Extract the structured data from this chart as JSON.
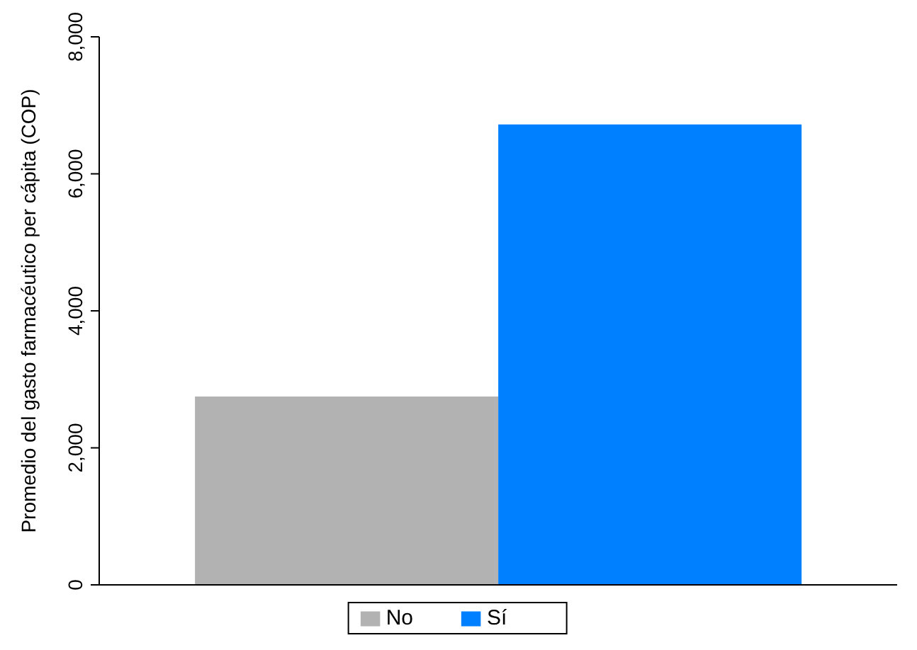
{
  "chart_data": {
    "type": "bar",
    "ylabel": "Promedio del gasto farmacéutico per cápita (COP)",
    "categories": [
      null
    ],
    "series": [
      {
        "name": "No",
        "color": "#b2b2b2",
        "values": [
          2750
        ]
      },
      {
        "name": "Sí",
        "color": "#0080ff",
        "values": [
          6720
        ]
      }
    ],
    "ylim": [
      0,
      8000
    ],
    "yticks": [
      {
        "value": 0,
        "label": "0"
      },
      {
        "value": 2000,
        "label": "2,000"
      },
      {
        "value": 4000,
        "label": "4,000"
      },
      {
        "value": 6000,
        "label": "6,000"
      },
      {
        "value": 8000,
        "label": "8,000"
      }
    ],
    "grid": false,
    "legend": "bottom"
  }
}
